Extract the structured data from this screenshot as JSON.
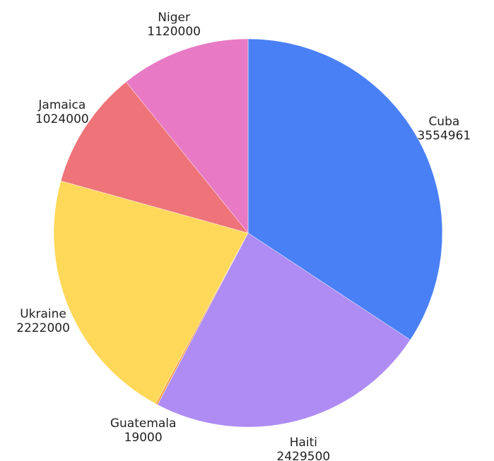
{
  "chart_data": {
    "type": "pie",
    "title": "",
    "categories": [
      "Cuba",
      "Haiti",
      "Guatemala",
      "Ukraine",
      "Jamaica",
      "Niger"
    ],
    "values": [
      3554961,
      2429500,
      19000,
      2222000,
      1024000,
      1120000
    ],
    "colors": [
      "#4a80f5",
      "#ae8cf3",
      "#f5a14a",
      "#fed959",
      "#ee7479",
      "#e87ac5"
    ],
    "start_angle_deg": 0,
    "direction": "clockwise",
    "label_format": "name-over-value",
    "legend": "none"
  }
}
